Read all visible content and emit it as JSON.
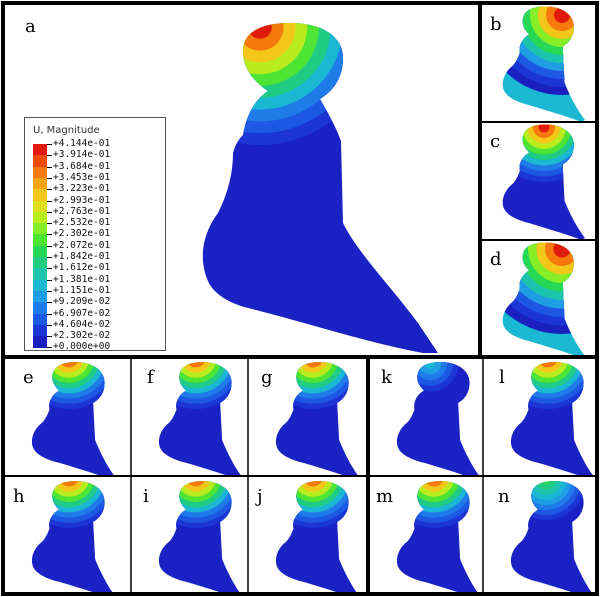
{
  "panels": [
    "a",
    "b",
    "c",
    "d",
    "e",
    "f",
    "g",
    "h",
    "i",
    "j",
    "k",
    "l",
    "m",
    "n"
  ],
  "legend": {
    "title": "U, Magnitude",
    "levels": [
      "+4.144e-01",
      "+3.914e-01",
      "+3.684e-01",
      "+3.453e-01",
      "+3.223e-01",
      "+2.993e-01",
      "+2.763e-01",
      "+2.532e-01",
      "+2.302e-01",
      "+2.072e-01",
      "+1.842e-01",
      "+1.612e-01",
      "+1.381e-01",
      "+1.151e-01",
      "+9.209e-02",
      "+6.907e-02",
      "+4.604e-02",
      "+2.302e-02",
      "+0.000e+00"
    ],
    "colors": [
      "#e01a0d",
      "#ee4a0c",
      "#f5790c",
      "#f8a412",
      "#f3c61a",
      "#dde01f",
      "#b8ec1f",
      "#86ee27",
      "#4ee434",
      "#27d855",
      "#20cc83",
      "#1dc4ad",
      "#1ab8d2",
      "#1f9ee3",
      "#1f7be8",
      "#1d58e4",
      "#1b36d4",
      "#1a1fbf"
    ]
  },
  "colors": {
    "frame": "#000000",
    "background": "#ffffff",
    "bone": "#1a22c4"
  }
}
